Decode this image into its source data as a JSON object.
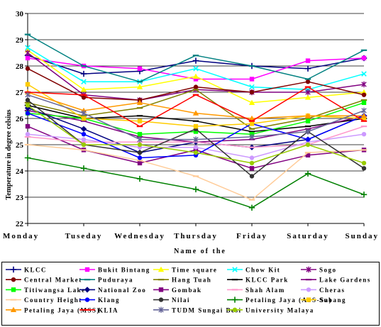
{
  "chart_data": {
    "type": "line",
    "xlabel": "Name of the",
    "ylabel": "Temperature in degree celsius",
    "ylim": [
      22,
      30
    ],
    "yticks": [
      "22",
      "23",
      "24",
      "25",
      "26",
      "27",
      "28",
      "29",
      "30"
    ],
    "categories": [
      "Monday",
      "Tuseday",
      "Wednesday",
      "Thursday",
      "Friday",
      "Saturday",
      "Sunday"
    ],
    "grid": "horizontal",
    "legend_position": "bottom",
    "series": [
      {
        "name": "KLCC",
        "color": "#000080",
        "marker": "plus",
        "values": [
          28.4,
          27.7,
          27.8,
          28.2,
          28.0,
          27.9,
          28.3
        ]
      },
      {
        "name": "Bukit Bintang",
        "color": "#ff00ff",
        "marker": "square",
        "values": [
          28.3,
          28.0,
          27.9,
          27.5,
          27.5,
          28.2,
          28.3
        ]
      },
      {
        "name": "Time square",
        "color": "#ffff00",
        "marker": "triangle",
        "values": [
          28.6,
          27.1,
          27.2,
          27.6,
          26.6,
          26.8,
          27.0
        ]
      },
      {
        "name": "Chow Kit",
        "color": "#00ffff",
        "marker": "x",
        "values": [
          28.7,
          27.4,
          27.4,
          27.9,
          27.2,
          27.1,
          27.7
        ]
      },
      {
        "name": "Sogo",
        "color": "#800080",
        "marker": "asterisk",
        "values": [
          28.5,
          26.9,
          26.7,
          27.1,
          27.0,
          27.0,
          27.3
        ]
      },
      {
        "name": "Central Market",
        "color": "#800000",
        "marker": "circle",
        "values": [
          27.9,
          26.8,
          26.7,
          27.2,
          27.0,
          27.4,
          26.9
        ]
      },
      {
        "name": "Puduraya",
        "color": "#008080",
        "marker": "dash",
        "values": [
          29.2,
          28.0,
          27.4,
          28.4,
          28.0,
          27.5,
          28.6
        ]
      },
      {
        "name": "Hang Tuah",
        "color": "#808000",
        "marker": "dash",
        "values": [
          26.6,
          26.1,
          26.4,
          27.1,
          25.6,
          26.0,
          26.7
        ]
      },
      {
        "name": "KLCC Park",
        "color": "#000000",
        "marker": "dash",
        "values": [
          26.5,
          26.0,
          26.1,
          25.9,
          25.5,
          25.7,
          26.0
        ]
      },
      {
        "name": "Lake Gardens",
        "color": "#800080",
        "marker": "dash",
        "values": [
          26.3,
          25.9,
          25.3,
          25.1,
          25.2,
          25.6,
          26.1
        ]
      },
      {
        "name": "Titiwangsa Lake",
        "color": "#00ff00",
        "marker": "square",
        "values": [
          26.2,
          26.0,
          25.4,
          25.5,
          25.4,
          25.9,
          26.6
        ]
      },
      {
        "name": "National Zoo",
        "color": "#000080",
        "marker": "diamond",
        "values": [
          26.4,
          25.6,
          24.7,
          25.1,
          24.9,
          25.2,
          26.1
        ]
      },
      {
        "name": "Gombak",
        "color": "#800080",
        "marker": "square",
        "values": [
          25.7,
          24.8,
          24.3,
          24.8,
          24.1,
          24.6,
          24.8
        ]
      },
      {
        "name": "Shah Alam",
        "color": "#ff99cc",
        "marker": "dash",
        "values": [
          25.3,
          25.1,
          25.1,
          25.1,
          24.9,
          25.0,
          25.7
        ]
      },
      {
        "name": "Cheras",
        "color": "#cc99ff",
        "marker": "circle",
        "values": [
          25.4,
          25.2,
          24.9,
          24.9,
          24.5,
          25.1,
          25.4
        ]
      },
      {
        "name": "Country Height",
        "color": "#ffcc99",
        "marker": "dash",
        "values": [
          25.0,
          24.8,
          24.4,
          23.8,
          22.9,
          24.7,
          24.8
        ]
      },
      {
        "name": "Klang",
        "color": "#0000ff",
        "marker": "circle",
        "values": [
          26.2,
          25.4,
          24.5,
          24.6,
          25.8,
          25.2,
          26.1
        ]
      },
      {
        "name": "Nilai",
        "color": "#333333",
        "marker": "circle",
        "values": [
          26.7,
          25.0,
          24.7,
          25.6,
          23.8,
          25.5,
          24.1
        ]
      },
      {
        "name": "Petaling Jaya (ASS-Sa)",
        "color": "#008000",
        "marker": "plus",
        "values": [
          24.5,
          24.1,
          23.7,
          23.3,
          22.6,
          23.9,
          23.1
        ]
      },
      {
        "name": "Subang",
        "color": "#ffcc00",
        "marker": "square",
        "values": [
          27.3,
          26.0,
          25.9,
          25.7,
          25.8,
          26.1,
          26.0
        ]
      },
      {
        "name": "Petaling Jaya (MSS)",
        "color": "#ff9900",
        "marker": "triangle",
        "values": [
          27.0,
          26.3,
          26.6,
          26.2,
          26.0,
          26.1,
          26.1
        ]
      },
      {
        "name": "KLIA",
        "color": "#ff0000",
        "marker": "dash",
        "values": [
          27.0,
          26.9,
          25.7,
          26.9,
          25.9,
          27.2,
          25.9
        ]
      },
      {
        "name": "TUDM Sungai Besi",
        "color": "#666699",
        "marker": "asterisk",
        "values": [
          26.9,
          26.2,
          25.2,
          25.2,
          25.3,
          25.5,
          26.3
        ]
      },
      {
        "name": "University Malaya",
        "color": "#99cc00",
        "marker": "circle",
        "values": [
          26.5,
          25.0,
          25.0,
          24.7,
          24.3,
          25.0,
          24.3
        ]
      }
    ]
  },
  "legend": {
    "labels": [
      "KLCC",
      "Bukit Bintang",
      "Time square",
      "Chow Kit",
      "Sogo",
      "Central Market",
      "Puduraya",
      "Hang Tuah",
      "KLCC Park",
      "Lake Gardens",
      "Titiwangsa Lake",
      "National Zoo",
      "Gombak",
      "Shah Alam",
      "Cheras",
      "Country Height",
      "Klang",
      "Nilai",
      "Petaling Jaya (ASS-Sa)",
      "Subang",
      "Petaling Jaya (MSS)",
      "KLIA",
      "TUDM Sungai Besi",
      "University Malaya"
    ]
  }
}
